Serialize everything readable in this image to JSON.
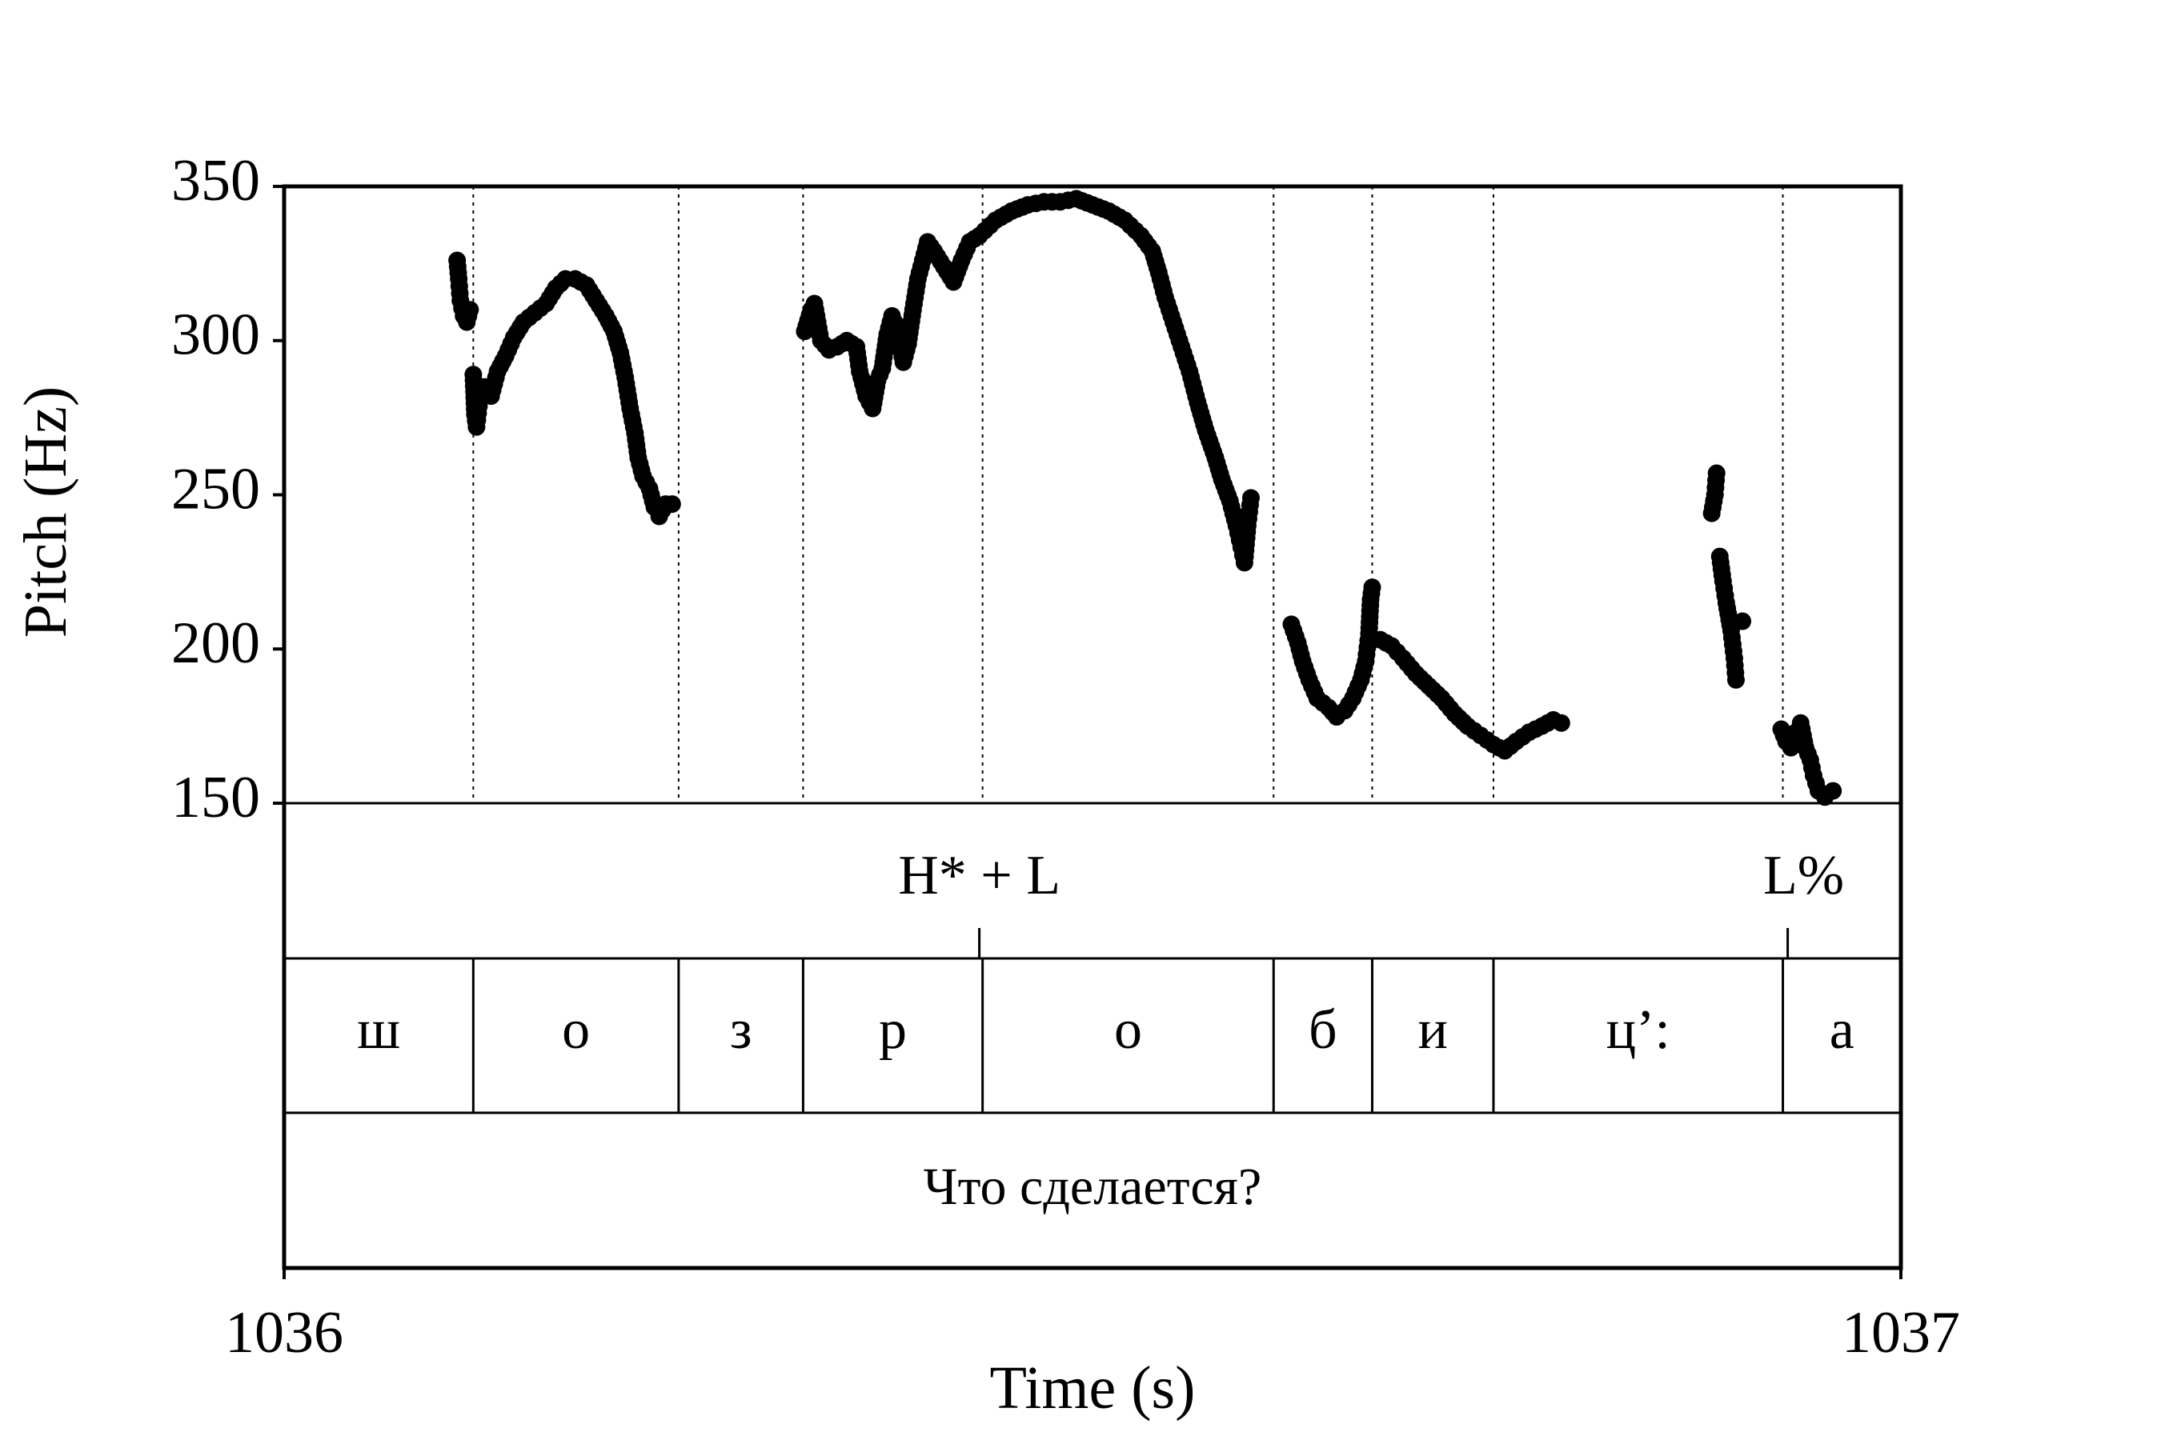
{
  "chart_data": {
    "type": "scatter",
    "title": "",
    "xlabel": "Time (s)",
    "ylabel": "Pitch (Hz)",
    "xlim": [
      1036,
      1037
    ],
    "ylim": [
      150,
      350
    ],
    "x_ticks": [
      "1036",
      "1037"
    ],
    "y_ticks": [
      "150",
      "200",
      "250",
      "300",
      "350"
    ],
    "grid": false,
    "legend": "none",
    "marker_color": "#000000",
    "tones": [
      {
        "label": "H* + L",
        "time": 1036.43
      },
      {
        "label": "L%",
        "time": 1036.93
      }
    ],
    "segment_boundaries": [
      1036.117,
      1036.244,
      1036.321,
      1036.432,
      1036.612,
      1036.673,
      1036.748,
      1036.927
    ],
    "segments": [
      {
        "label": "ш",
        "start": 1036.0,
        "end": 1036.117
      },
      {
        "label": "о",
        "start": 1036.117,
        "end": 1036.244
      },
      {
        "label": "з",
        "start": 1036.244,
        "end": 1036.321
      },
      {
        "label": "р",
        "start": 1036.321,
        "end": 1036.432
      },
      {
        "label": "о",
        "start": 1036.432,
        "end": 1036.612
      },
      {
        "label": "б",
        "start": 1036.612,
        "end": 1036.673
      },
      {
        "label": "и",
        "start": 1036.673,
        "end": 1036.748
      },
      {
        "label": "ц’:",
        "start": 1036.748,
        "end": 1036.927
      },
      {
        "label": "а",
        "start": 1036.927,
        "end": 1037.0
      }
    ],
    "sentence": "Что сделается?",
    "pitch_contours": [
      [
        [
          1036.107,
          326
        ],
        [
          1036.108,
          320
        ],
        [
          1036.109,
          313
        ],
        [
          1036.111,
          308
        ],
        [
          1036.113,
          306
        ],
        [
          1036.115,
          310
        ]
      ],
      [
        [
          1036.117,
          289
        ],
        [
          1036.118,
          276
        ],
        [
          1036.119,
          272
        ],
        [
          1036.121,
          281
        ],
        [
          1036.124,
          285
        ],
        [
          1036.128,
          282
        ],
        [
          1036.132,
          290
        ],
        [
          1036.137,
          295
        ],
        [
          1036.142,
          301
        ],
        [
          1036.148,
          306
        ],
        [
          1036.155,
          309
        ],
        [
          1036.162,
          312
        ],
        [
          1036.168,
          317
        ],
        [
          1036.174,
          320
        ],
        [
          1036.18,
          320
        ],
        [
          1036.187,
          318
        ],
        [
          1036.193,
          313
        ],
        [
          1036.199,
          308
        ],
        [
          1036.204,
          303
        ],
        [
          1036.208,
          296
        ],
        [
          1036.211,
          288
        ],
        [
          1036.214,
          278
        ],
        [
          1036.217,
          270
        ],
        [
          1036.219,
          262
        ],
        [
          1036.222,
          256
        ],
        [
          1036.226,
          252
        ],
        [
          1036.229,
          246
        ],
        [
          1036.232,
          243
        ],
        [
          1036.236,
          247
        ],
        [
          1036.24,
          247
        ]
      ],
      [
        [
          1036.322,
          303
        ],
        [
          1036.326,
          310
        ],
        [
          1036.328,
          312
        ],
        [
          1036.332,
          300
        ],
        [
          1036.337,
          297
        ],
        [
          1036.342,
          298
        ],
        [
          1036.348,
          300
        ],
        [
          1036.354,
          298
        ],
        [
          1036.356,
          290
        ],
        [
          1036.36,
          282
        ],
        [
          1036.364,
          278
        ],
        [
          1036.367,
          287
        ],
        [
          1036.37,
          291
        ],
        [
          1036.373,
          302
        ],
        [
          1036.376,
          308
        ],
        [
          1036.379,
          304
        ],
        [
          1036.383,
          293
        ],
        [
          1036.386,
          299
        ],
        [
          1036.389,
          310
        ],
        [
          1036.392,
          320
        ],
        [
          1036.396,
          328
        ],
        [
          1036.398,
          332
        ],
        [
          1036.402,
          329
        ],
        [
          1036.408,
          324
        ],
        [
          1036.414,
          319
        ],
        [
          1036.419,
          326
        ],
        [
          1036.424,
          332
        ],
        [
          1036.43,
          334
        ],
        [
          1036.44,
          339
        ],
        [
          1036.45,
          342
        ],
        [
          1036.46,
          344
        ],
        [
          1036.47,
          345
        ],
        [
          1036.48,
          345
        ],
        [
          1036.49,
          346
        ],
        [
          1036.5,
          344
        ],
        [
          1036.51,
          342
        ],
        [
          1036.52,
          339
        ],
        [
          1036.53,
          334
        ],
        [
          1036.537,
          329
        ],
        [
          1036.541,
          322
        ],
        [
          1036.545,
          314
        ],
        [
          1036.55,
          306
        ],
        [
          1036.555,
          298
        ],
        [
          1036.56,
          290
        ],
        [
          1036.565,
          280
        ],
        [
          1036.57,
          271
        ],
        [
          1036.576,
          262
        ],
        [
          1036.58,
          255
        ],
        [
          1036.585,
          248
        ],
        [
          1036.589,
          240
        ],
        [
          1036.592,
          233
        ],
        [
          1036.594,
          228
        ],
        [
          1036.596,
          240
        ],
        [
          1036.598,
          249
        ]
      ],
      [
        [
          1036.623,
          208
        ],
        [
          1036.627,
          202
        ],
        [
          1036.63,
          196
        ],
        [
          1036.634,
          190
        ],
        [
          1036.639,
          184
        ],
        [
          1036.646,
          181
        ],
        [
          1036.651,
          178
        ],
        [
          1036.656,
          180
        ],
        [
          1036.661,
          184
        ],
        [
          1036.666,
          190
        ],
        [
          1036.669,
          196
        ],
        [
          1036.671,
          205
        ],
        [
          1036.672,
          216
        ],
        [
          1036.673,
          220
        ],
        [
          1036.678,
          203
        ],
        [
          1036.685,
          201
        ],
        [
          1036.692,
          197
        ],
        [
          1036.7,
          192
        ],
        [
          1036.708,
          188
        ],
        [
          1036.716,
          184
        ],
        [
          1036.724,
          179
        ],
        [
          1036.732,
          175
        ],
        [
          1036.74,
          172
        ],
        [
          1036.748,
          169
        ],
        [
          1036.755,
          167
        ],
        [
          1036.762,
          170
        ],
        [
          1036.77,
          173
        ],
        [
          1036.778,
          175
        ],
        [
          1036.785,
          177
        ],
        [
          1036.79,
          176
        ]
      ],
      [
        [
          1036.883,
          244
        ],
        [
          1036.885,
          250
        ],
        [
          1036.886,
          257
        ],
        [
          1036.888,
          230
        ],
        [
          1036.89,
          222
        ],
        [
          1036.892,
          215
        ],
        [
          1036.895,
          206
        ],
        [
          1036.897,
          197
        ],
        [
          1036.898,
          190
        ],
        [
          1036.902,
          209
        ]
      ],
      [
        [
          1036.926,
          174
        ],
        [
          1036.929,
          170
        ],
        [
          1036.932,
          168
        ],
        [
          1036.935,
          173
        ],
        [
          1036.938,
          176
        ],
        [
          1036.941,
          168
        ],
        [
          1036.944,
          164
        ],
        [
          1036.946,
          159
        ],
        [
          1036.949,
          154
        ],
        [
          1036.953,
          152
        ],
        [
          1036.958,
          154
        ]
      ]
    ]
  }
}
